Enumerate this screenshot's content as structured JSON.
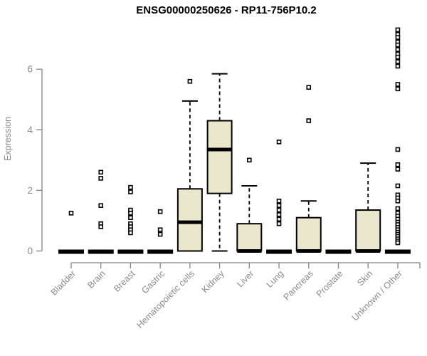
{
  "chart_data": {
    "type": "boxplot",
    "title": "ENSG00000250626 - RP11-756P10.2",
    "ylabel": "Expression",
    "xlabel": "",
    "yticks": [
      0,
      2,
      4,
      6
    ],
    "ylim": [
      0,
      7.5
    ],
    "grid": false,
    "legend": "none",
    "categories": [
      "Bladder",
      "Brain",
      "Breast",
      "Gastric",
      "Hematopoietic cells",
      "Kidney",
      "Liver",
      "Lung",
      "Pancreas",
      "Prostate",
      "Skin",
      "Unknown / Other"
    ],
    "series": [
      {
        "name": "Bladder",
        "q1": 0,
        "median": 0,
        "q3": 0,
        "whisker_low": 0,
        "whisker_high": 0,
        "outliers": [
          1.25
        ]
      },
      {
        "name": "Brain",
        "q1": 0,
        "median": 0,
        "q3": 0,
        "whisker_low": 0,
        "whisker_high": 0,
        "outliers": [
          2.6,
          2.4,
          1.5,
          0.9,
          0.8
        ]
      },
      {
        "name": "Breast",
        "q1": 0,
        "median": 0,
        "q3": 0,
        "whisker_low": 0,
        "whisker_high": 0,
        "outliers": [
          2.1,
          1.95,
          1.35,
          1.25,
          1.1,
          0.9,
          0.8,
          0.7,
          0.6
        ]
      },
      {
        "name": "Gastric",
        "q1": 0,
        "median": 0,
        "q3": 0,
        "whisker_low": 0,
        "whisker_high": 0,
        "outliers": [
          1.3,
          0.7,
          0.55
        ]
      },
      {
        "name": "Hematopoietic cells",
        "q1": 0,
        "median": 0.95,
        "q3": 2.05,
        "whisker_low": 0,
        "whisker_high": 4.95,
        "outliers": [
          5.6
        ]
      },
      {
        "name": "Kidney",
        "q1": 1.9,
        "median": 3.35,
        "q3": 4.3,
        "whisker_low": 0,
        "whisker_high": 5.85,
        "outliers": []
      },
      {
        "name": "Liver",
        "q1": 0,
        "median": 0,
        "q3": 0.9,
        "whisker_low": 0,
        "whisker_high": 2.15,
        "outliers": [
          3.0
        ]
      },
      {
        "name": "Lung",
        "q1": 0,
        "median": 0,
        "q3": 0,
        "whisker_low": 0,
        "whisker_high": 0,
        "outliers": [
          3.6,
          1.65,
          1.5,
          1.35,
          1.2,
          1.05,
          0.9
        ]
      },
      {
        "name": "Pancreas",
        "q1": 0,
        "median": 0,
        "q3": 1.1,
        "whisker_low": 0,
        "whisker_high": 1.65,
        "outliers": [
          5.4,
          4.3
        ]
      },
      {
        "name": "Prostate",
        "q1": 0,
        "median": 0,
        "q3": 0,
        "whisker_low": 0,
        "whisker_high": 0,
        "outliers": []
      },
      {
        "name": "Skin",
        "q1": 0,
        "median": 0,
        "q3": 1.35,
        "whisker_low": 0,
        "whisker_high": 2.9,
        "outliers": []
      },
      {
        "name": "Unknown / Other",
        "q1": 0,
        "median": 0,
        "q3": 0,
        "whisker_low": 0,
        "whisker_high": 0,
        "outliers": [
          7.3,
          7.15,
          7.05,
          6.9,
          6.8,
          6.65,
          6.5,
          6.4,
          6.25,
          6.1,
          5.5,
          5.35,
          3.35,
          2.85,
          2.7,
          2.15,
          1.85,
          1.75,
          1.65,
          1.4,
          1.25,
          1.15,
          1.05,
          0.95,
          0.87,
          0.78,
          0.7,
          0.62,
          0.55,
          0.48,
          0.4,
          0.33,
          0.27
        ]
      }
    ],
    "colors": {
      "box_fill": "#EBE7CD",
      "box_stroke": "#000000",
      "median": "#000000",
      "whisker": "#000000",
      "outlier_fill": "#ffffff",
      "axis": "#848484",
      "tick_label": "#8a8a8a",
      "title": "#000000"
    }
  }
}
